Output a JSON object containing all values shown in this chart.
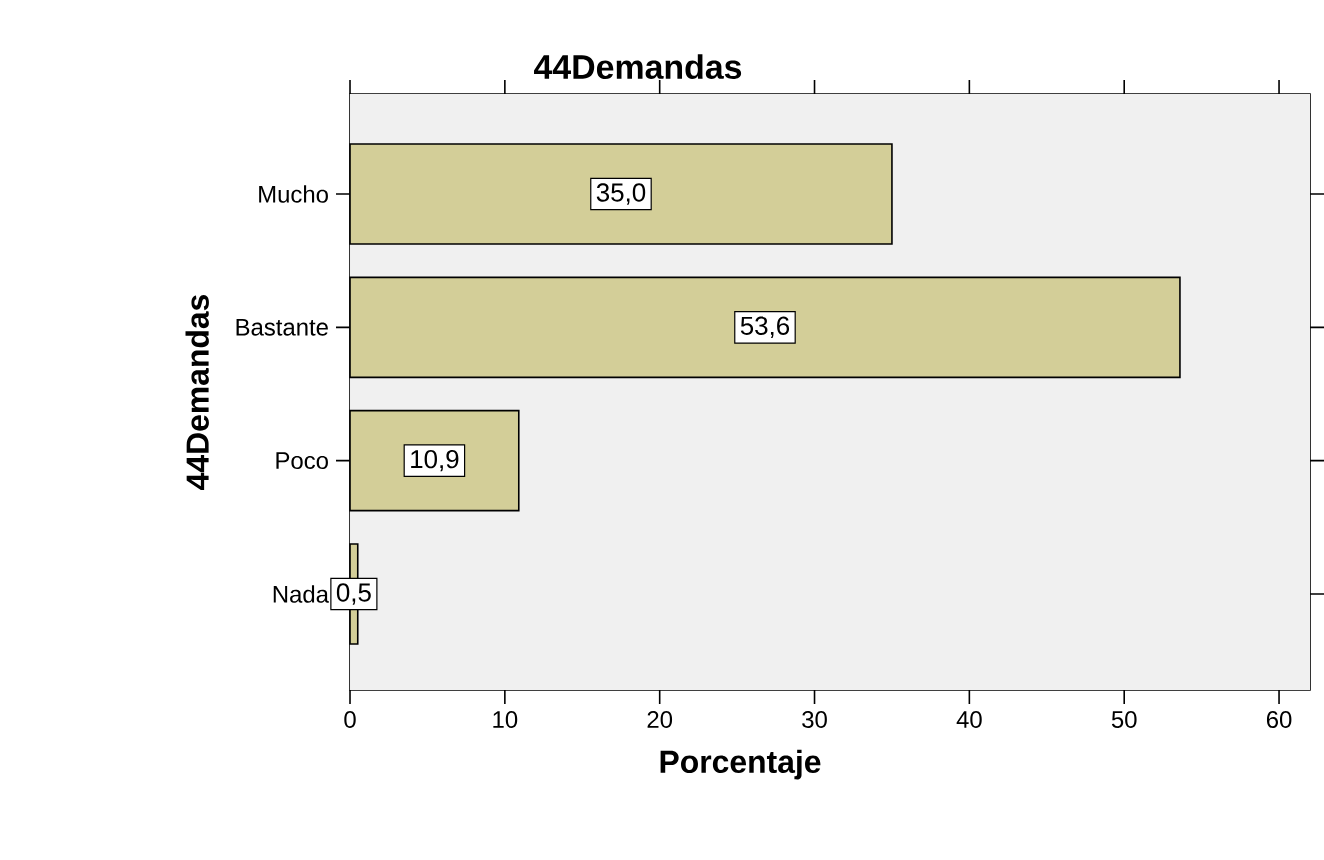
{
  "chart_data": {
    "type": "bar",
    "orientation": "horizontal",
    "title": "44Demandas",
    "xlabel": "Porcentaje",
    "ylabel": "44Demandas",
    "categories": [
      "Mucho",
      "Bastante",
      "Poco",
      "Nada"
    ],
    "values": [
      35.0,
      53.6,
      10.9,
      0.5
    ],
    "value_labels": [
      "35,0",
      "53,6",
      "10,9",
      "0,5"
    ],
    "color": "#d3ce98",
    "xlim": [
      0,
      62
    ],
    "xticks": [
      0,
      10,
      20,
      30,
      40,
      50,
      60
    ]
  }
}
